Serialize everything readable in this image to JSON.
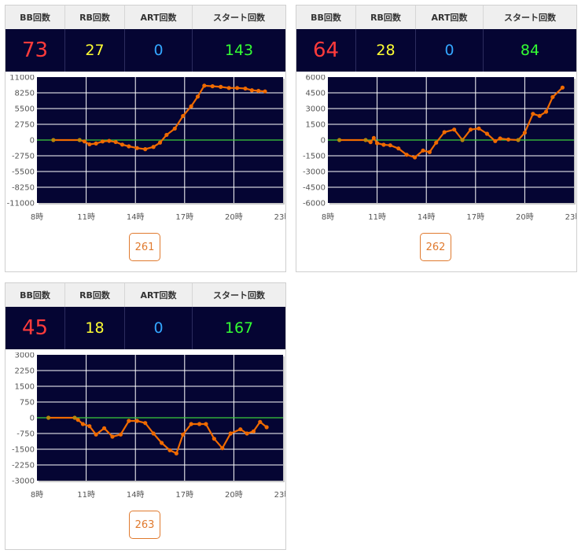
{
  "headers": {
    "bb": "BB回数",
    "rb": "RB回数",
    "art": "ART回数",
    "start": "スタート回数"
  },
  "colors": {
    "bb": "#ff3b3b",
    "rb": "#ffff33",
    "art": "#33a6ff",
    "start": "#33ff33",
    "line": "#f06a00",
    "zero_line": "#3ccd3c",
    "plot_bg": "#050533"
  },
  "machines": [
    {
      "number": "261",
      "bb": "73",
      "rb": "27",
      "art": "0",
      "start": "143",
      "chart_data": {
        "type": "line",
        "x_tick_labels": [
          "8時",
          "11時",
          "14時",
          "17時",
          "20時",
          "23時"
        ],
        "y_tick_labels": [
          "11000",
          "8250",
          "5500",
          "2750",
          "0",
          "-2750",
          "-5500",
          "-8250",
          "-11000"
        ],
        "ylim": [
          -11000,
          11000
        ],
        "xlim": [
          8,
          23
        ],
        "points": [
          [
            9.0,
            0
          ],
          [
            10.6,
            0
          ],
          [
            10.9,
            -250
          ],
          [
            11.2,
            -750
          ],
          [
            11.6,
            -600
          ],
          [
            12.0,
            -250
          ],
          [
            12.4,
            -150
          ],
          [
            12.8,
            -350
          ],
          [
            13.2,
            -800
          ],
          [
            13.6,
            -1100
          ],
          [
            14.1,
            -1400
          ],
          [
            14.6,
            -1600
          ],
          [
            15.1,
            -1200
          ],
          [
            15.5,
            -450
          ],
          [
            15.9,
            900
          ],
          [
            16.4,
            2000
          ],
          [
            16.9,
            4200
          ],
          [
            17.4,
            5900
          ],
          [
            17.8,
            7600
          ],
          [
            18.2,
            9500
          ],
          [
            18.7,
            9400
          ],
          [
            19.2,
            9300
          ],
          [
            19.7,
            9100
          ],
          [
            20.2,
            9100
          ],
          [
            20.7,
            9000
          ],
          [
            21.1,
            8700
          ],
          [
            21.5,
            8600
          ],
          [
            21.9,
            8500
          ]
        ]
      }
    },
    {
      "number": "262",
      "bb": "64",
      "rb": "28",
      "art": "0",
      "start": "84",
      "chart_data": {
        "type": "line",
        "x_tick_labels": [
          "8時",
          "11時",
          "14時",
          "17時",
          "20時",
          "23時"
        ],
        "y_tick_labels": [
          "6000",
          "4500",
          "3000",
          "1500",
          "0",
          "-1500",
          "-3000",
          "-4500",
          "-6000"
        ],
        "ylim": [
          -6000,
          6000
        ],
        "xlim": [
          8,
          23
        ],
        "points": [
          [
            8.7,
            0
          ],
          [
            10.3,
            0
          ],
          [
            10.6,
            -200
          ],
          [
            10.8,
            200
          ],
          [
            11.0,
            -300
          ],
          [
            11.4,
            -450
          ],
          [
            11.8,
            -500
          ],
          [
            12.3,
            -800
          ],
          [
            12.8,
            -1400
          ],
          [
            13.3,
            -1650
          ],
          [
            13.8,
            -1000
          ],
          [
            14.2,
            -1150
          ],
          [
            14.6,
            -250
          ],
          [
            15.1,
            750
          ],
          [
            15.7,
            1000
          ],
          [
            16.2,
            0
          ],
          [
            16.7,
            1000
          ],
          [
            17.2,
            1100
          ],
          [
            17.7,
            600
          ],
          [
            18.2,
            -100
          ],
          [
            18.5,
            150
          ],
          [
            19.0,
            50
          ],
          [
            19.6,
            0
          ],
          [
            20.0,
            700
          ],
          [
            20.5,
            2500
          ],
          [
            20.9,
            2300
          ],
          [
            21.3,
            2700
          ],
          [
            21.7,
            4100
          ],
          [
            22.3,
            5000
          ]
        ]
      }
    },
    {
      "number": "263",
      "bb": "45",
      "rb": "18",
      "art": "0",
      "start": "167",
      "chart_data": {
        "type": "line",
        "x_tick_labels": [
          "8時",
          "11時",
          "14時",
          "17時",
          "20時",
          "23時"
        ],
        "y_tick_labels": [
          "3000",
          "2250",
          "1500",
          "750",
          "0",
          "-750",
          "-1500",
          "-2250",
          "-3000"
        ],
        "ylim": [
          -3000,
          3000
        ],
        "xlim": [
          8,
          23
        ],
        "points": [
          [
            8.7,
            0
          ],
          [
            10.3,
            0
          ],
          [
            10.5,
            -100
          ],
          [
            10.8,
            -300
          ],
          [
            11.2,
            -400
          ],
          [
            11.6,
            -800
          ],
          [
            12.1,
            -500
          ],
          [
            12.6,
            -900
          ],
          [
            13.1,
            -800
          ],
          [
            13.6,
            -150
          ],
          [
            14.1,
            -150
          ],
          [
            14.6,
            -250
          ],
          [
            15.1,
            -750
          ],
          [
            15.6,
            -1200
          ],
          [
            16.1,
            -1550
          ],
          [
            16.5,
            -1700
          ],
          [
            16.9,
            -800
          ],
          [
            17.4,
            -300
          ],
          [
            17.9,
            -300
          ],
          [
            18.3,
            -300
          ],
          [
            18.8,
            -1000
          ],
          [
            19.3,
            -1450
          ],
          [
            19.8,
            -750
          ],
          [
            20.4,
            -550
          ],
          [
            20.8,
            -750
          ],
          [
            21.2,
            -650
          ],
          [
            21.6,
            -200
          ],
          [
            22.0,
            -450
          ]
        ]
      }
    }
  ]
}
